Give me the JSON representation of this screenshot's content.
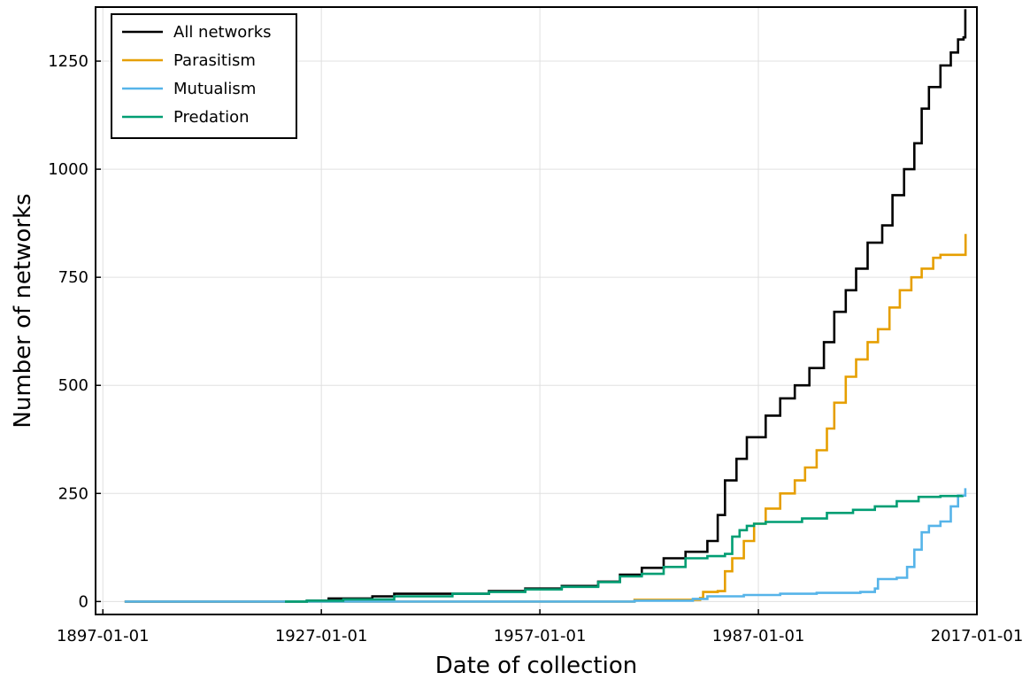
{
  "chart_data": {
    "type": "line",
    "title": "",
    "xlabel": "Date of collection",
    "ylabel": "Number of networks",
    "xlim": [
      "1896-01-01",
      "2017-01-01"
    ],
    "ylim": [
      -30,
      1375
    ],
    "x_ticks": [
      "1897-01-01",
      "1927-01-01",
      "1957-01-01",
      "1987-01-01",
      "2017-01-01"
    ],
    "y_ticks": [
      0,
      250,
      500,
      750,
      1000,
      1250
    ],
    "grid": true,
    "legend": "top-left",
    "series": [
      {
        "name": "All networks",
        "color": "#000000",
        "points": [
          [
            "1900-01-01",
            0
          ],
          [
            "1925-01-01",
            2
          ],
          [
            "1928-01-01",
            7
          ],
          [
            "1934-01-01",
            12
          ],
          [
            "1937-01-01",
            18
          ],
          [
            "1950-01-01",
            24
          ],
          [
            "1955-01-01",
            30
          ],
          [
            "1960-01-01",
            36
          ],
          [
            "1965-01-01",
            46
          ],
          [
            "1968-01-01",
            62
          ],
          [
            "1971-01-01",
            78
          ],
          [
            "1974-01-01",
            100
          ],
          [
            "1977-01-01",
            115
          ],
          [
            "1980-01-01",
            140
          ],
          [
            "1981-06-01",
            200
          ],
          [
            "1982-06-01",
            280
          ],
          [
            "1984-01-01",
            330
          ],
          [
            "1985-06-01",
            380
          ],
          [
            "1988-01-01",
            430
          ],
          [
            "1990-01-01",
            470
          ],
          [
            "1992-01-01",
            500
          ],
          [
            "1994-01-01",
            540
          ],
          [
            "1996-01-01",
            600
          ],
          [
            "1997-06-01",
            670
          ],
          [
            "1999-01-01",
            720
          ],
          [
            "2000-06-01",
            770
          ],
          [
            "2002-01-01",
            830
          ],
          [
            "2004-01-01",
            870
          ],
          [
            "2005-06-01",
            940
          ],
          [
            "2007-01-01",
            1000
          ],
          [
            "2008-06-01",
            1060
          ],
          [
            "2009-06-01",
            1140
          ],
          [
            "2010-06-01",
            1190
          ],
          [
            "2012-01-01",
            1240
          ],
          [
            "2013-06-01",
            1270
          ],
          [
            "2014-06-01",
            1300
          ],
          [
            "2015-03-01",
            1305
          ],
          [
            "2015-06-01",
            1370
          ]
        ]
      },
      {
        "name": "Parasitism",
        "color": "#E69F00",
        "points": [
          [
            "1900-01-01",
            0
          ],
          [
            "1970-01-01",
            4
          ],
          [
            "1979-01-01",
            8
          ],
          [
            "1979-06-01",
            22
          ],
          [
            "1981-06-01",
            24
          ],
          [
            "1982-06-01",
            70
          ],
          [
            "1983-06-01",
            100
          ],
          [
            "1985-01-01",
            140
          ],
          [
            "1986-06-01",
            180
          ],
          [
            "1988-01-01",
            215
          ],
          [
            "1990-01-01",
            250
          ],
          [
            "1992-01-01",
            280
          ],
          [
            "1993-06-01",
            310
          ],
          [
            "1995-01-01",
            350
          ],
          [
            "1996-06-01",
            400
          ],
          [
            "1997-06-01",
            460
          ],
          [
            "1999-01-01",
            520
          ],
          [
            "2000-06-01",
            560
          ],
          [
            "2002-01-01",
            600
          ],
          [
            "2003-06-01",
            630
          ],
          [
            "2005-01-01",
            680
          ],
          [
            "2006-06-01",
            720
          ],
          [
            "2008-01-01",
            750
          ],
          [
            "2009-06-01",
            770
          ],
          [
            "2011-01-01",
            795
          ],
          [
            "2012-01-01",
            802
          ],
          [
            "2015-06-01",
            802
          ],
          [
            "2015-06-15",
            850
          ]
        ]
      },
      {
        "name": "Mutualism",
        "color": "#56B4E9",
        "points": [
          [
            "1900-01-01",
            0
          ],
          [
            "1970-01-01",
            2
          ],
          [
            "1978-01-01",
            6
          ],
          [
            "1980-01-01",
            12
          ],
          [
            "1985-01-01",
            15
          ],
          [
            "1990-01-01",
            18
          ],
          [
            "1995-01-01",
            20
          ],
          [
            "2001-01-01",
            22
          ],
          [
            "2003-01-01",
            30
          ],
          [
            "2003-06-01",
            52
          ],
          [
            "2006-01-01",
            55
          ],
          [
            "2007-06-01",
            80
          ],
          [
            "2008-06-01",
            120
          ],
          [
            "2009-06-01",
            160
          ],
          [
            "2010-06-01",
            175
          ],
          [
            "2012-01-01",
            185
          ],
          [
            "2013-06-01",
            220
          ],
          [
            "2014-06-01",
            245
          ],
          [
            "2015-06-01",
            262
          ]
        ]
      },
      {
        "name": "Predation",
        "color": "#009E73",
        "points": [
          [
            "1922-01-01",
            0
          ],
          [
            "1925-01-01",
            2
          ],
          [
            "1930-01-01",
            5
          ],
          [
            "1937-01-01",
            12
          ],
          [
            "1945-01-01",
            18
          ],
          [
            "1950-01-01",
            22
          ],
          [
            "1955-01-01",
            28
          ],
          [
            "1960-01-01",
            34
          ],
          [
            "1965-01-01",
            45
          ],
          [
            "1968-01-01",
            58
          ],
          [
            "1971-01-01",
            64
          ],
          [
            "1974-01-01",
            80
          ],
          [
            "1977-01-01",
            100
          ],
          [
            "1980-01-01",
            105
          ],
          [
            "1982-06-01",
            110
          ],
          [
            "1983-06-01",
            150
          ],
          [
            "1984-06-01",
            165
          ],
          [
            "1985-06-01",
            175
          ],
          [
            "1986-06-01",
            180
          ],
          [
            "1988-01-01",
            184
          ],
          [
            "1993-01-01",
            192
          ],
          [
            "1996-06-01",
            205
          ],
          [
            "2000-01-01",
            212
          ],
          [
            "2003-01-01",
            220
          ],
          [
            "2006-01-01",
            232
          ],
          [
            "2009-01-01",
            242
          ],
          [
            "2012-01-01",
            244
          ],
          [
            "2015-01-01",
            245
          ]
        ]
      }
    ]
  }
}
